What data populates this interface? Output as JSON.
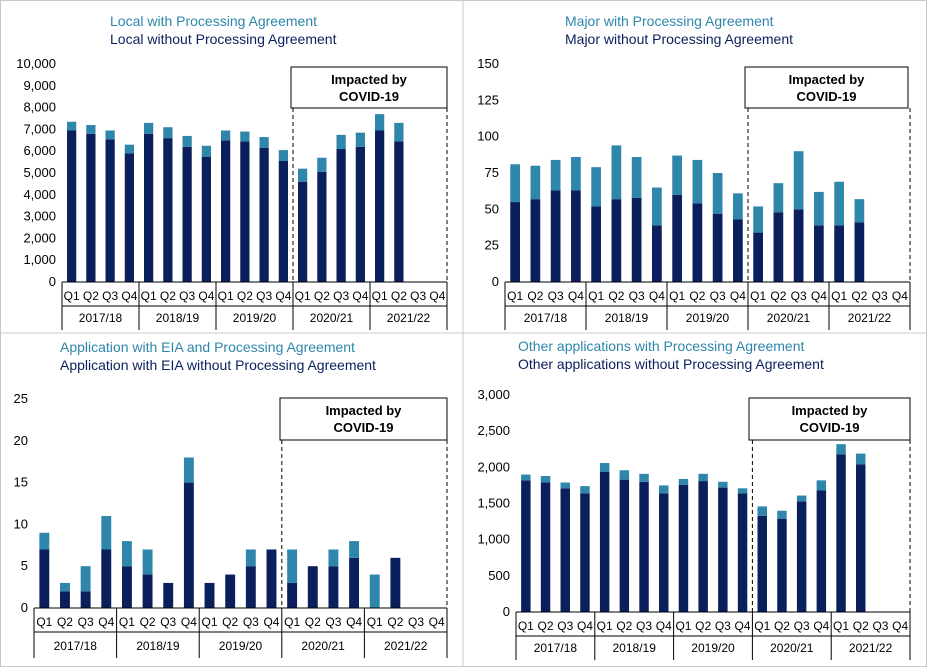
{
  "colors": {
    "with": "#2e86ab",
    "without": "#0b1f5c",
    "grid": "#d0d0d0",
    "axis": "#000000",
    "border": "#c8c8c8"
  },
  "quarters": [
    "Q1",
    "Q2",
    "Q3",
    "Q4"
  ],
  "years": [
    "2017/18",
    "2018/19",
    "2019/20",
    "2020/21",
    "2021/22"
  ],
  "chart_data": [
    {
      "type": "bar",
      "stacked": true,
      "title_with": "Local with  Processing Agreement",
      "title_without": "Local without  Processing Agreement",
      "annotation": [
        "Impacted by",
        "COVID-19"
      ],
      "ylim": [
        0,
        10000
      ],
      "yticks": [
        0,
        1000,
        2000,
        3000,
        4000,
        5000,
        6000,
        7000,
        8000,
        9000,
        10000
      ],
      "ytick_labels": [
        "0",
        "1,000",
        "2,000",
        "3,000",
        "4,000",
        "5,000",
        "6,000",
        "7,000",
        "8,000",
        "9,000",
        "10,000"
      ],
      "categories": [
        "Q1 2017/18",
        "Q2 2017/18",
        "Q3 2017/18",
        "Q4 2017/18",
        "Q1 2018/19",
        "Q2 2018/19",
        "Q3 2018/19",
        "Q4 2018/19",
        "Q1 2019/20",
        "Q2 2019/20",
        "Q3 2019/20",
        "Q4 2019/20",
        "Q1 2020/21",
        "Q2 2020/21",
        "Q3 2020/21",
        "Q4 2020/21",
        "Q1 2021/22",
        "Q2 2021/22",
        "Q3 2021/22",
        "Q4 2021/22"
      ],
      "series": [
        {
          "name": "without",
          "values": [
            6950,
            6800,
            6550,
            5900,
            6800,
            6600,
            6200,
            5750,
            6500,
            6450,
            6150,
            5550,
            4600,
            5050,
            6100,
            6200,
            6950,
            6450,
            null,
            null
          ]
        },
        {
          "name": "with",
          "values": [
            400,
            400,
            400,
            400,
            500,
            500,
            500,
            500,
            450,
            450,
            500,
            500,
            600,
            650,
            650,
            650,
            750,
            850,
            null,
            null
          ]
        }
      ]
    },
    {
      "type": "bar",
      "stacked": true,
      "title_with": "Major with  Processing Agreement",
      "title_without": "Major without  Processing Agreement",
      "annotation": [
        "Impacted by",
        "COVID-19"
      ],
      "ylim": [
        0,
        150
      ],
      "yticks": [
        0,
        25,
        50,
        75,
        100,
        125,
        150
      ],
      "ytick_labels": [
        "0",
        "25",
        "50",
        "75",
        "100",
        "125",
        "150"
      ],
      "categories": [
        "Q1 2017/18",
        "Q2 2017/18",
        "Q3 2017/18",
        "Q4 2017/18",
        "Q1 2018/19",
        "Q2 2018/19",
        "Q3 2018/19",
        "Q4 2018/19",
        "Q1 2019/20",
        "Q2 2019/20",
        "Q3 2019/20",
        "Q4 2019/20",
        "Q1 2020/21",
        "Q2 2020/21",
        "Q3 2020/21",
        "Q4 2020/21",
        "Q1 2021/22",
        "Q2 2021/22",
        "Q3 2021/22",
        "Q4 2021/22"
      ],
      "series": [
        {
          "name": "without",
          "values": [
            55,
            57,
            63,
            63,
            52,
            57,
            58,
            39,
            60,
            54,
            47,
            43,
            34,
            48,
            50,
            39,
            39,
            41,
            null,
            null
          ]
        },
        {
          "name": "with",
          "values": [
            26,
            23,
            21,
            23,
            27,
            37,
            28,
            26,
            27,
            30,
            28,
            18,
            18,
            20,
            40,
            23,
            30,
            16,
            null,
            null
          ]
        }
      ]
    },
    {
      "type": "bar",
      "stacked": true,
      "title_with": "Application with EIA and Processing Agreement",
      "title_without": "Application with EIA without  Processing Agreement",
      "annotation": [
        "Impacted by",
        "COVID-19"
      ],
      "ylim": [
        0,
        25
      ],
      "yticks": [
        0,
        5,
        10,
        15,
        20,
        25
      ],
      "ytick_labels": [
        "0",
        "5",
        "10",
        "15",
        "20",
        "25"
      ],
      "categories": [
        "Q1 2017/18",
        "Q2 2017/18",
        "Q3 2017/18",
        "Q4 2017/18",
        "Q1 2018/19",
        "Q2 2018/19",
        "Q3 2018/19",
        "Q4 2018/19",
        "Q1 2019/20",
        "Q2 2019/20",
        "Q3 2019/20",
        "Q4 2019/20",
        "Q1 2020/21",
        "Q2 2020/21",
        "Q3 2020/21",
        "Q4 2020/21",
        "Q1 2021/22",
        "Q2 2021/22",
        "Q3 2021/22",
        "Q4 2021/22"
      ],
      "series": [
        {
          "name": "without",
          "values": [
            7,
            2,
            2,
            7,
            5,
            4,
            3,
            15,
            3,
            4,
            5,
            7,
            3,
            5,
            5,
            6,
            0,
            6,
            null,
            null
          ]
        },
        {
          "name": "with",
          "values": [
            2,
            1,
            3,
            4,
            3,
            3,
            0,
            3,
            0,
            0,
            2,
            0,
            4,
            0,
            2,
            2,
            4,
            0,
            null,
            null
          ]
        }
      ]
    },
    {
      "type": "bar",
      "stacked": true,
      "title_with": "Other applications with  Processing Agreement",
      "title_without": "Other applications without  Processing Agreement",
      "annotation": [
        "Impacted by",
        "COVID-19"
      ],
      "ylim": [
        0,
        3000
      ],
      "yticks": [
        0,
        500,
        1000,
        1500,
        2000,
        2500,
        3000
      ],
      "ytick_labels": [
        "0",
        "500",
        "1,000",
        "1,500",
        "2,000",
        "2,500",
        "3,000"
      ],
      "categories": [
        "Q1 2017/18",
        "Q2 2017/18",
        "Q3 2017/18",
        "Q4 2017/18",
        "Q1 2018/19",
        "Q2 2018/19",
        "Q3 2018/19",
        "Q4 2018/19",
        "Q1 2019/20",
        "Q2 2019/20",
        "Q3 2019/20",
        "Q4 2019/20",
        "Q1 2020/21",
        "Q2 2020/21",
        "Q3 2020/21",
        "Q4 2020/21",
        "Q1 2021/22",
        "Q2 2021/22",
        "Q3 2021/22",
        "Q4 2021/22"
      ],
      "series": [
        {
          "name": "without",
          "values": [
            1820,
            1790,
            1710,
            1640,
            1940,
            1830,
            1800,
            1640,
            1760,
            1810,
            1720,
            1640,
            1330,
            1290,
            1530,
            1680,
            2180,
            2040,
            null,
            null
          ]
        },
        {
          "name": "with",
          "values": [
            80,
            90,
            80,
            100,
            120,
            130,
            110,
            110,
            80,
            100,
            80,
            70,
            130,
            110,
            80,
            140,
            140,
            150,
            null,
            null
          ]
        }
      ]
    }
  ]
}
